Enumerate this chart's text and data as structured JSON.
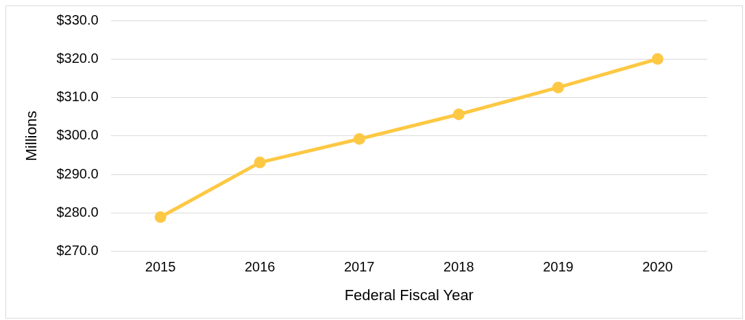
{
  "chart_data": {
    "type": "line",
    "xlabel": "Federal Fiscal Year",
    "ylabel": "Millions",
    "categories": [
      "2015",
      "2016",
      "2017",
      "2018",
      "2019",
      "2020"
    ],
    "series": [
      {
        "color": "#fdc843",
        "values": [
          278.9,
          293.1,
          299.2,
          305.6,
          312.6,
          320.0
        ]
      }
    ],
    "ylim": [
      270,
      330
    ],
    "yticks": [
      {
        "value": 270,
        "label": "$270.0"
      },
      {
        "value": 280,
        "label": "$280.0"
      },
      {
        "value": 290,
        "label": "$290.0"
      },
      {
        "value": 300,
        "label": "$300.0"
      },
      {
        "value": 310,
        "label": "$310.0"
      },
      {
        "value": 320,
        "label": "$320.0"
      },
      {
        "value": 330,
        "label": "$330.0"
      }
    ],
    "grid": "y",
    "legend": false,
    "marker": "circle",
    "line_style": "solid"
  }
}
